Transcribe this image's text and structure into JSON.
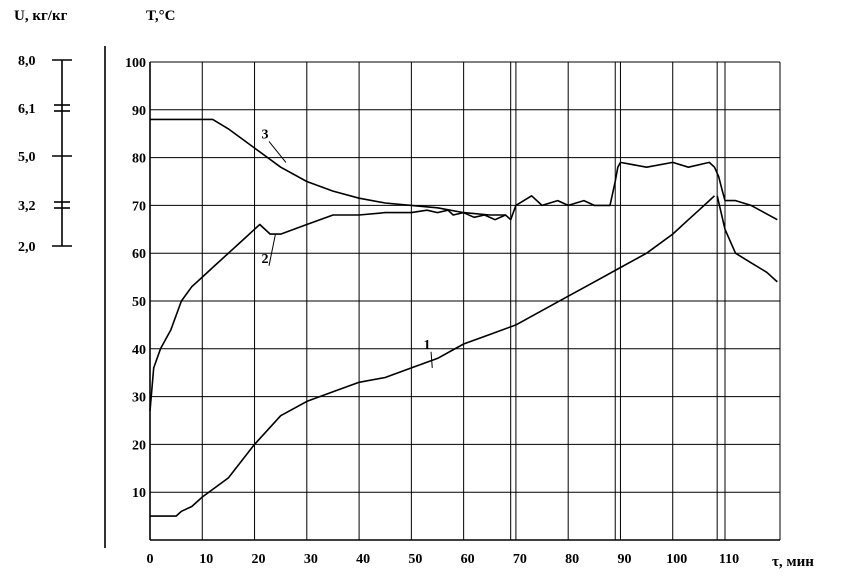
{
  "chart_data": {
    "type": "line",
    "xlabel": "τ, мин",
    "ylabel_left": "U, кг/кг",
    "ylabel_right": "T,°C",
    "xlim": [
      0,
      120
    ],
    "ylim": [
      0,
      100
    ],
    "x_ticks": [
      "0",
      "10",
      "20",
      "30",
      "40",
      "50",
      "60",
      "70",
      "80",
      "90",
      "100",
      "110"
    ],
    "y_ticks": [
      "10",
      "20",
      "30",
      "40",
      "50",
      "60",
      "70",
      "80",
      "90",
      "100"
    ],
    "u_ticks": [
      "8,0",
      "6,1",
      "5,0",
      "3,2",
      "2,0"
    ],
    "grid": true,
    "series": [
      {
        "name": "1",
        "x": [
          0,
          5,
          6,
          8,
          10,
          15,
          20,
          25,
          30,
          35,
          40,
          45,
          50,
          55,
          60,
          65,
          70,
          75,
          80,
          85,
          90,
          95,
          100,
          103,
          105,
          107,
          108
        ],
        "y": [
          5,
          5,
          6,
          7,
          9,
          13,
          20,
          26,
          29,
          31,
          33,
          34,
          36,
          38,
          41,
          43,
          45,
          48,
          51,
          54,
          57,
          60,
          64,
          67,
          69,
          71,
          72
        ]
      },
      {
        "name": "2",
        "x": [
          0,
          0.7,
          2,
          4,
          6,
          8,
          10,
          12,
          15,
          18,
          20,
          21,
          23,
          25,
          30,
          35,
          40,
          45,
          50,
          53,
          55,
          57,
          58,
          60,
          62,
          64,
          66,
          68,
          69,
          70,
          73,
          75,
          78,
          80,
          83,
          85,
          88,
          89,
          89.5,
          90,
          95,
          100,
          103,
          107,
          108,
          108.8,
          109.5,
          110,
          112,
          115,
          120
        ],
        "y": [
          27,
          36,
          40,
          44,
          50,
          53,
          55,
          57,
          60,
          63,
          65,
          66,
          64,
          64,
          66,
          68,
          68,
          68.5,
          68.5,
          69,
          68.5,
          69,
          68,
          68.5,
          67.5,
          68,
          67,
          68,
          67,
          70,
          72,
          70,
          71,
          70,
          71,
          70,
          70,
          75,
          78,
          79,
          78,
          79,
          78,
          79,
          78,
          76,
          73,
          71,
          71,
          70,
          67
        ]
      },
      {
        "name": "3",
        "x": [
          0,
          6,
          10,
          12,
          15,
          20,
          25,
          30,
          35,
          40,
          45,
          50,
          55,
          60,
          65,
          68
        ],
        "y": [
          88,
          88,
          88,
          88,
          86,
          82,
          78,
          75,
          73,
          71.5,
          70.5,
          70,
          69.5,
          68.5,
          68,
          68
        ]
      },
      {
        "name": "",
        "x": [
          108.5,
          110,
          112,
          115,
          118,
          120
        ],
        "y": [
          72,
          65,
          60,
          58,
          56,
          54
        ]
      }
    ],
    "curve_labels": [
      {
        "text": "1",
        "x": 53,
        "y": 40
      },
      {
        "text": "2",
        "x": 22,
        "y": 58
      },
      {
        "text": "3",
        "x": 22,
        "y": 84
      }
    ]
  }
}
